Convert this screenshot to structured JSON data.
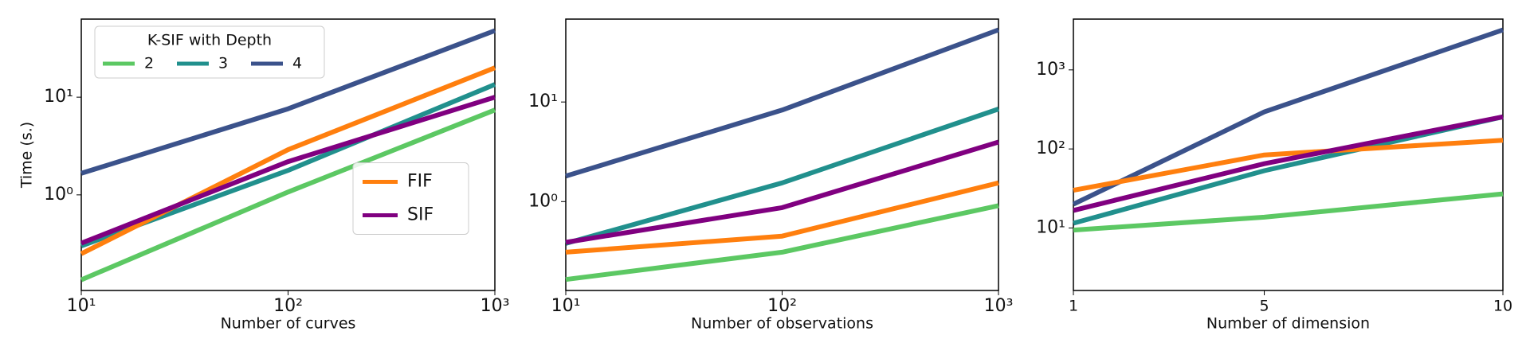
{
  "chart_data": [
    {
      "type": "line",
      "xlabel": "Number of curves",
      "ylabel": "Time (s.)",
      "xscale": "log",
      "yscale": "log",
      "x": [
        10,
        100,
        1000
      ],
      "xlim": [
        10,
        1000
      ],
      "xticks": [
        {
          "value": 10,
          "label": "10¹"
        },
        {
          "value": 100,
          "label": "10²"
        },
        {
          "value": 1000,
          "label": "10³"
        }
      ],
      "ylim": [
        0.105,
        63
      ],
      "yticks": [
        {
          "value": 1,
          "label": "10⁰"
        },
        {
          "value": 10,
          "label": "10¹"
        }
      ],
      "legend_title": "K-SIF with Depth",
      "series": [
        {
          "name": "2",
          "color": "#5cc863",
          "values": [
            0.135,
            1.07,
            7.4
          ],
          "legend": "upper left"
        },
        {
          "name": "3",
          "color": "#21908d",
          "values": [
            0.3,
            1.78,
            13.5
          ],
          "legend": "upper left"
        },
        {
          "name": "4",
          "color": "#3b528b",
          "values": [
            1.66,
            7.6,
            48
          ],
          "legend": "upper left"
        },
        {
          "name": "FIF",
          "color": "#ff7f0e",
          "values": [
            0.25,
            2.9,
            20
          ],
          "legend": "center right"
        },
        {
          "name": "SIF",
          "color": "#800080",
          "values": [
            0.32,
            2.19,
            10
          ],
          "legend": "center right"
        }
      ]
    },
    {
      "type": "line",
      "xlabel": "Number of observations",
      "xscale": "log",
      "yscale": "log",
      "x": [
        10,
        100,
        1000
      ],
      "xlim": [
        10,
        1000
      ],
      "xticks": [
        {
          "value": 10,
          "label": "10¹"
        },
        {
          "value": 100,
          "label": "10²"
        },
        {
          "value": 1000,
          "label": "10³"
        }
      ],
      "ylim": [
        0.128,
        68
      ],
      "yticks": [
        {
          "value": 1,
          "label": "10⁰"
        },
        {
          "value": 10,
          "label": "10¹"
        }
      ],
      "series": [
        {
          "color": "#5cc863",
          "values": [
            0.165,
            0.31,
            0.91
          ]
        },
        {
          "color": "#21908d",
          "values": [
            0.38,
            1.54,
            8.5
          ]
        },
        {
          "color": "#3b528b",
          "values": [
            1.8,
            8.3,
            53
          ]
        },
        {
          "color": "#ff7f0e",
          "values": [
            0.31,
            0.45,
            1.54
          ]
        },
        {
          "color": "#800080",
          "values": [
            0.39,
            0.87,
            3.96
          ]
        }
      ]
    },
    {
      "type": "line",
      "xlabel": "Number of dimension",
      "xscale": "linear",
      "yscale": "log",
      "x": [
        1,
        5,
        10
      ],
      "xlim": [
        1,
        10
      ],
      "xticks": [
        1,
        5,
        10
      ],
      "ylim": [
        1.62,
        4390
      ],
      "yticks": [
        {
          "value": 10,
          "label": "10¹"
        },
        {
          "value": 100,
          "label": "10²"
        },
        {
          "value": 1000,
          "label": "10³"
        }
      ],
      "series": [
        {
          "color": "#5cc863",
          "values": [
            9.4,
            13.7,
            27
          ]
        },
        {
          "color": "#21908d",
          "values": [
            11.5,
            53,
            255
          ]
        },
        {
          "color": "#3b528b",
          "values": [
            20,
            294,
            3200
          ]
        },
        {
          "color": "#ff7f0e",
          "values": [
            30,
            84,
            129
          ]
        },
        {
          "color": "#800080",
          "values": [
            16.7,
            65,
            255
          ]
        }
      ]
    }
  ]
}
